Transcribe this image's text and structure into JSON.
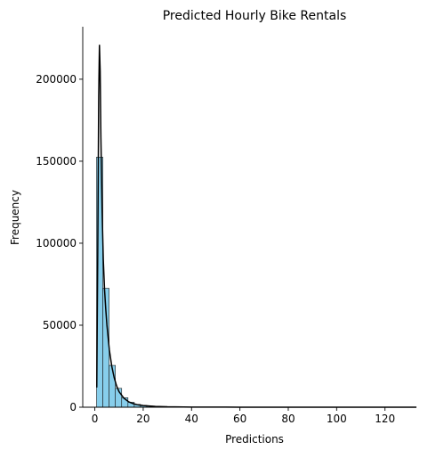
{
  "chart_data": {
    "type": "bar",
    "title": "Predicted Hourly Bike Rentals",
    "xlabel": "Predictions",
    "ylabel": "Frequency",
    "xlim": [
      -5,
      133
    ],
    "ylim": [
      0,
      232000
    ],
    "xticks": [
      0,
      20,
      40,
      60,
      80,
      100,
      120
    ],
    "yticks": [
      0,
      50000,
      100000,
      150000,
      200000
    ],
    "grid": false,
    "legend": "none",
    "bar_color": "#87CEEB",
    "bar_edge_color": "#1a1a1a",
    "kde_color": "#000000",
    "bins": {
      "start": 0.7,
      "width": 2.6,
      "counts": [
        152500,
        72500,
        25500,
        11500,
        5800,
        3000,
        1700,
        1100,
        700,
        450,
        300,
        200,
        150,
        100,
        80,
        60,
        50,
        40,
        30,
        25,
        20,
        15,
        12,
        10,
        8,
        6,
        5,
        4,
        3,
        3,
        2,
        2,
        2,
        1,
        1,
        1,
        1,
        1,
        1,
        1,
        1,
        1,
        1,
        1,
        1,
        1,
        1,
        1,
        1,
        1
      ]
    },
    "kde": {
      "x": [
        0.8,
        1.2,
        1.6,
        1.9,
        2.2,
        2.5,
        3.0,
        3.5,
        4.0,
        4.5,
        5.0,
        6.0,
        7.0,
        8.0,
        9.0,
        10.0,
        12.0,
        14.0,
        16.0,
        18.0,
        20.0,
        25.0,
        30.0,
        40.0,
        60.0,
        80.0,
        100.0,
        120.0,
        133.0
      ],
      "y": [
        12000,
        95000,
        190000,
        221000,
        205000,
        165000,
        120000,
        90000,
        72000,
        60000,
        50000,
        35000,
        25000,
        18000,
        13000,
        9500,
        5500,
        3300,
        2100,
        1400,
        1000,
        500,
        250,
        100,
        30,
        15,
        8,
        4,
        2
      ]
    }
  }
}
